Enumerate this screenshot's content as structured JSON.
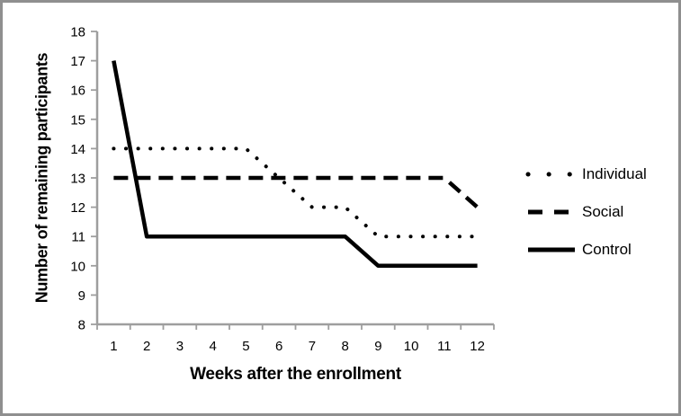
{
  "frame": {
    "background": "#ffffff",
    "border_color": "#8f8f8f"
  },
  "chart_data": {
    "type": "line",
    "title": "",
    "xlabel": "Weeks after the enrollment",
    "ylabel": "Number of remaining participants",
    "x": [
      1,
      2,
      3,
      4,
      5,
      6,
      7,
      8,
      9,
      10,
      11,
      12
    ],
    "x_tick_labels": [
      "1",
      "2",
      "3",
      "4",
      "5",
      "6",
      "7",
      "8",
      "9",
      "10",
      "11",
      "12"
    ],
    "y_ticks": [
      8,
      9,
      10,
      11,
      12,
      13,
      14,
      15,
      16,
      17,
      18
    ],
    "ylim": [
      8,
      18
    ],
    "grid": false,
    "legend_position": "right",
    "axis_color": "#9e9e9e",
    "series": [
      {
        "name": "Individual",
        "style": "dotted",
        "color": "#000000",
        "values": [
          14,
          14,
          14,
          14,
          14,
          13,
          12,
          12,
          11,
          11,
          11,
          11
        ]
      },
      {
        "name": "Social",
        "style": "dashed",
        "color": "#000000",
        "values": [
          13,
          13,
          13,
          13,
          13,
          13,
          13,
          13,
          13,
          13,
          13,
          12
        ]
      },
      {
        "name": "Control",
        "style": "solid",
        "color": "#000000",
        "values": [
          17,
          11,
          11,
          11,
          11,
          11,
          11,
          11,
          10,
          10,
          10,
          10
        ]
      }
    ]
  }
}
